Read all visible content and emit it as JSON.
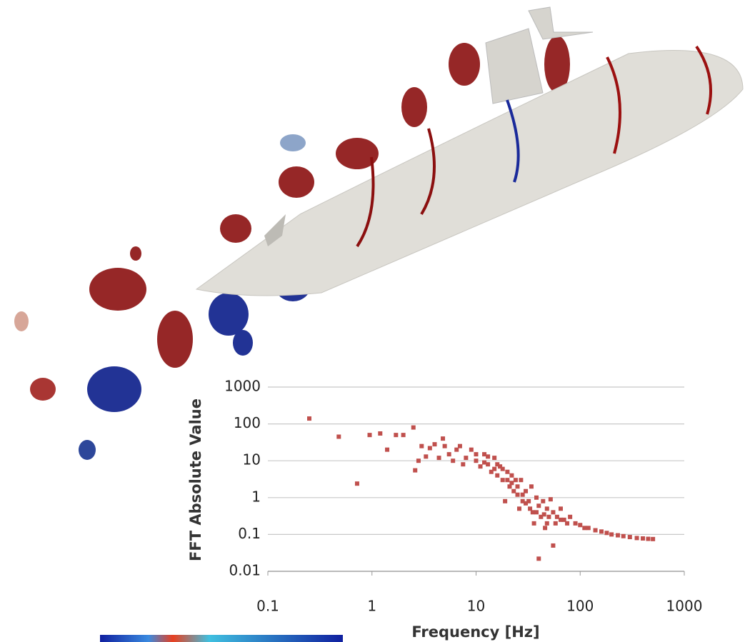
{
  "chart_data": {
    "type": "scatter",
    "xlabel": "Frequency [Hz]",
    "ylabel": "FFT Absolute Value",
    "xscale": "log",
    "yscale": "log",
    "xlim": [
      0.1,
      1000
    ],
    "ylim": [
      0.01,
      1000
    ],
    "xticks": [
      0.1,
      1,
      10,
      100,
      1000
    ],
    "yticks": [
      0.01,
      0.1,
      1,
      10,
      100,
      1000
    ],
    "grid": true,
    "color": "#c0504d",
    "x": [
      0.25,
      0.48,
      0.72,
      0.95,
      1.2,
      1.4,
      1.7,
      2,
      2.5,
      2.6,
      2.8,
      3,
      3.3,
      3.6,
      4,
      4.4,
      4.8,
      5,
      5.5,
      6,
      6.5,
      7,
      7.5,
      8,
      9,
      10,
      11,
      12,
      13,
      14,
      15,
      16,
      17,
      18,
      19,
      20,
      21,
      22,
      23,
      24,
      25,
      26,
      27,
      28,
      30,
      32,
      34,
      35,
      36,
      38,
      40,
      40,
      42,
      44,
      46,
      48,
      50,
      52,
      55,
      55,
      60,
      65,
      70,
      75,
      80,
      90,
      100,
      110,
      120,
      140,
      160,
      180,
      200,
      230,
      260,
      300,
      350,
      400,
      450,
      500,
      10,
      12,
      13,
      15,
      16,
      18,
      20,
      22,
      25,
      28,
      30,
      33,
      38,
      45,
      48,
      58,
      65
    ],
    "y": [
      140,
      45,
      2.4,
      50,
      55,
      20,
      50,
      50,
      80,
      5.5,
      10,
      25,
      13,
      22,
      28,
      12,
      40,
      25,
      15,
      10,
      20,
      25,
      8,
      12,
      20,
      10,
      7,
      15,
      8,
      5,
      12,
      4,
      7,
      3,
      0.8,
      5,
      2,
      4,
      1.5,
      3,
      2,
      0.5,
      3,
      1.2,
      1.5,
      0.8,
      2,
      0.4,
      0.2,
      1,
      0.6,
      0.022,
      0.3,
      0.8,
      0.15,
      0.5,
      0.3,
      0.9,
      0.05,
      0.4,
      0.3,
      0.5,
      0.25,
      0.2,
      0.3,
      0.2,
      0.18,
      0.15,
      0.15,
      0.13,
      0.12,
      0.11,
      0.1,
      0.095,
      0.09,
      0.085,
      0.08,
      0.078,
      0.076,
      0.075,
      15,
      9,
      13,
      6,
      8,
      6,
      3,
      2.5,
      1.2,
      0.8,
      0.7,
      0.5,
      0.4,
      0.35,
      0.2,
      0.2,
      0.25
    ]
  }
}
